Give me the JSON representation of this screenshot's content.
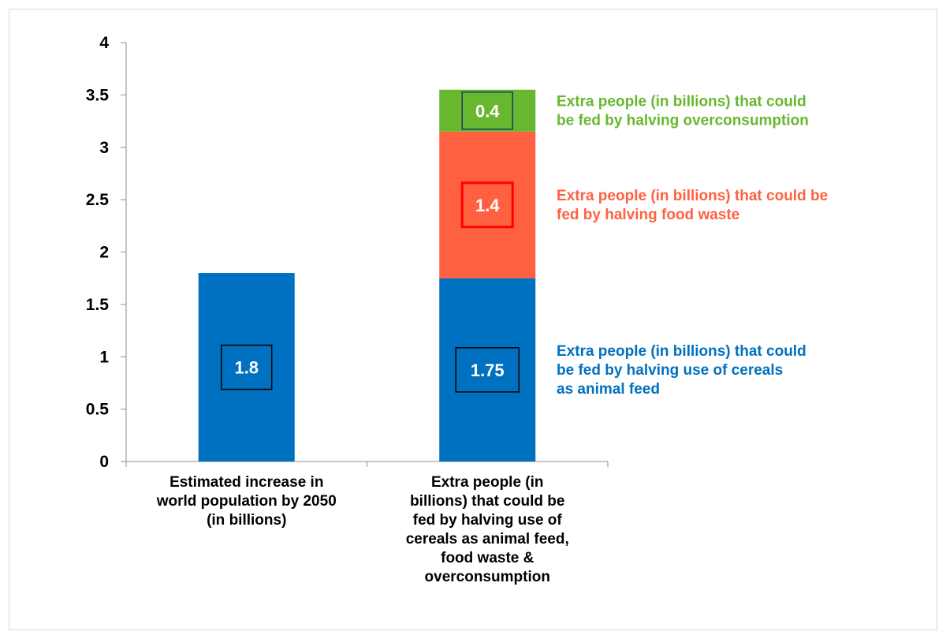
{
  "chart_data": {
    "type": "bar",
    "stacked": true,
    "title": "",
    "xlabel": "",
    "ylabel": "",
    "ylim": [
      0,
      4
    ],
    "yticks": [
      "0",
      "0.5",
      "1",
      "1.5",
      "2",
      "2.5",
      "3",
      "3.5",
      "4"
    ],
    "grid": false,
    "categories": [
      [
        "Estimated increase in",
        "world population by 2050",
        "(in billions)"
      ],
      [
        "Extra people (in",
        "billions) that could be",
        "fed by halving use of",
        "cereals as animal feed,",
        "food waste &",
        "overconsumption"
      ]
    ],
    "bars": [
      {
        "segments": [
          {
            "value": 1.8,
            "label": "1.8",
            "color": "#0070c0",
            "box": "#000000"
          }
        ]
      },
      {
        "segments": [
          {
            "value": 1.75,
            "label": "1.75",
            "color": "#0070c0",
            "box": "#000000",
            "annotation": [
              "Extra people (in billions) that could",
              "be fed by halving use of cereals",
              "as animal feed"
            ]
          },
          {
            "value": 1.4,
            "label": "1.4",
            "color": "#ff6140",
            "box": "#ff0000",
            "annotation": [
              "Extra people (in billions) that could be",
              "fed by halving food waste"
            ]
          },
          {
            "value": 0.4,
            "label": "0.4",
            "color": "#67b82e",
            "box": "#1f3864",
            "annotation": [
              "Extra people (in billions) that could",
              "be fed by halving overconsumption"
            ]
          }
        ]
      }
    ]
  }
}
